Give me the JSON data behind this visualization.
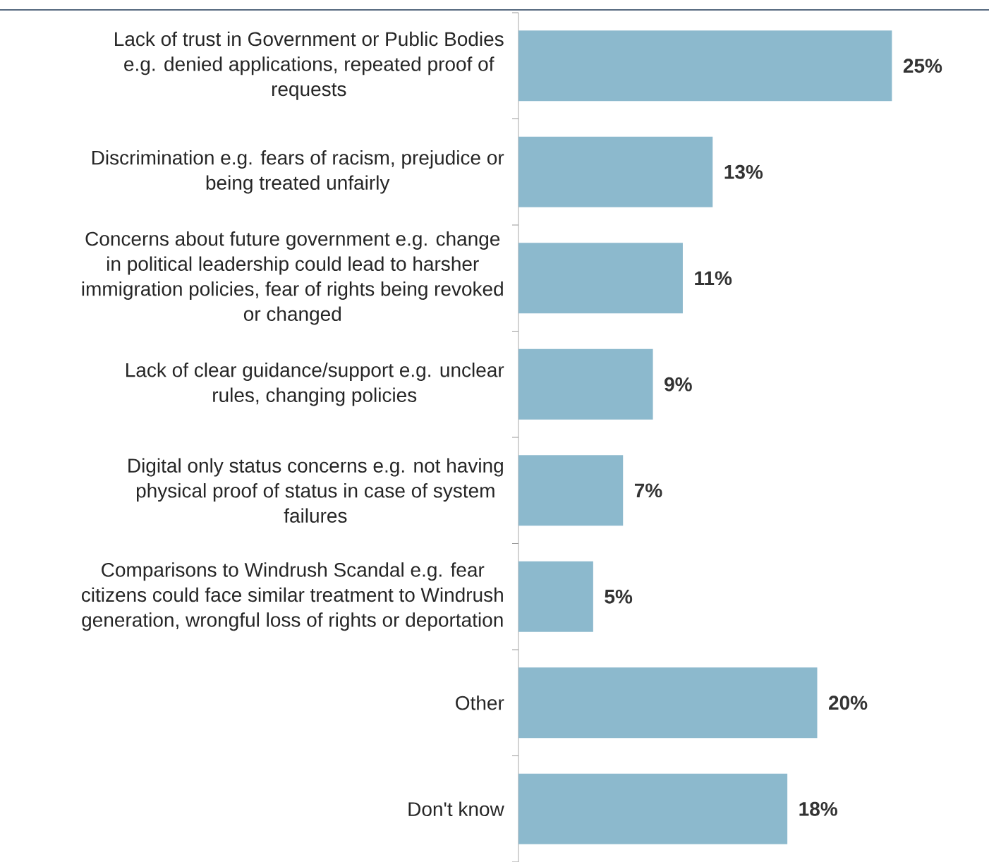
{
  "chart_data": {
    "type": "bar",
    "orientation": "horizontal",
    "categories": [
      "Lack of trust in Government or Public Bodies e.g. denied applications, repeated proof of requests",
      "Discrimination e.g. fears of racism, prejudice or being treated unfairly",
      "Concerns about future government e.g. change in political leadership could lead to harsher immigration policies, fear of rights being revoked or changed",
      "Lack of clear guidance/support e.g. unclear rules, changing policies",
      "Digital only status concerns e.g. not having physical proof of status in case of system failures",
      "Comparisons to Windrush Scandal e.g. fear citizens could face similar treatment to Windrush generation, wrongful loss of rights or deportation",
      "Other",
      "Don't know"
    ],
    "values": [
      25,
      13,
      11,
      9,
      7,
      5,
      20,
      18
    ],
    "value_labels": [
      "25%",
      "13%",
      "11%",
      "9%",
      "7%",
      "5%",
      "20%",
      "18%"
    ],
    "color": "#8cb9cd"
  }
}
